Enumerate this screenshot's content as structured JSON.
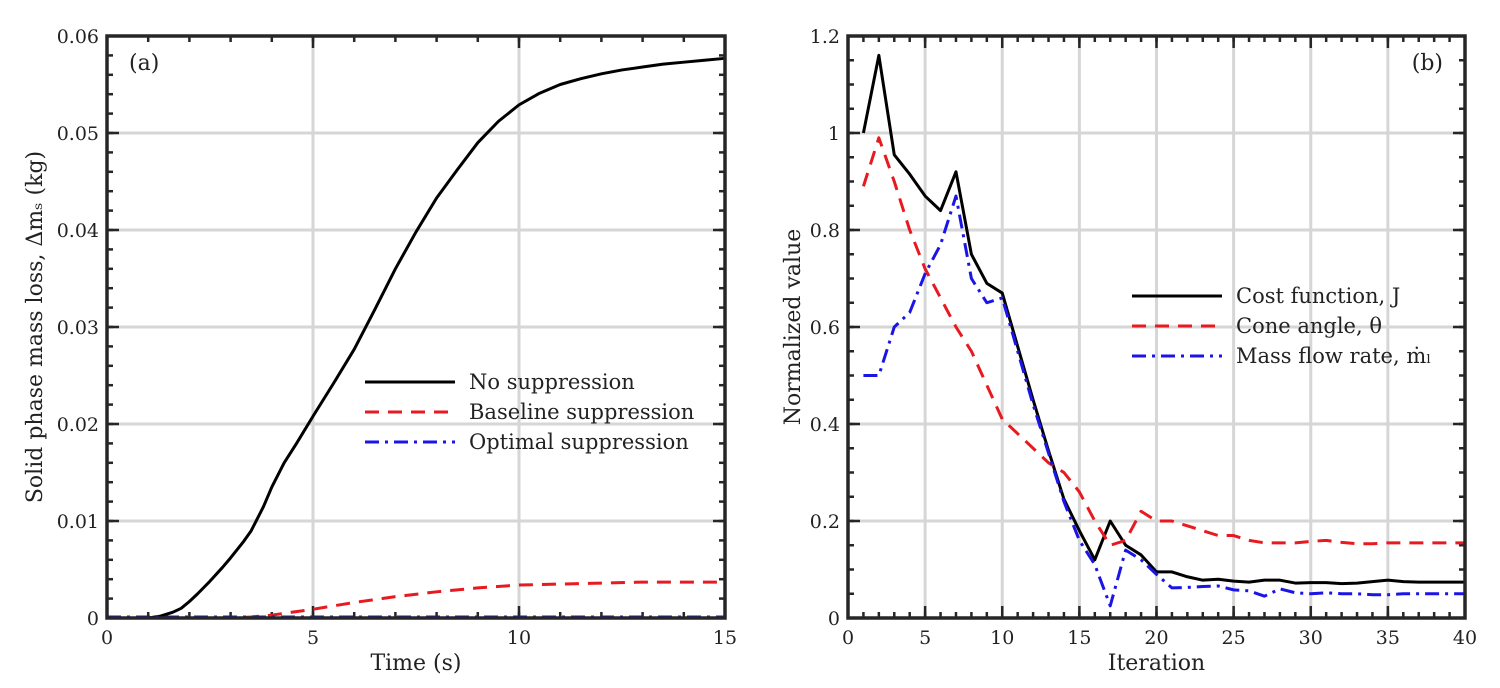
{
  "chart_data": [
    {
      "type": "line",
      "panel": "(a)",
      "title": "",
      "xlabel": "Time (s)",
      "ylabel": "Solid phase mass loss, Δmₛ (kg)",
      "xlim": [
        0,
        15
      ],
      "ylim": [
        0,
        0.06
      ],
      "xticks": [
        0,
        5,
        10,
        15
      ],
      "yticks": [
        0,
        0.01,
        0.02,
        0.03,
        0.04,
        0.05,
        0.06
      ],
      "xtick_labels": [
        "0",
        "5",
        "10",
        "15"
      ],
      "ytick_labels": [
        "0",
        "0.01",
        "0.02",
        "0.03",
        "0.04",
        "0.05",
        "0.06"
      ],
      "grid": true,
      "legend_position": "center-right",
      "series": [
        {
          "name": "No suppression",
          "color": "#000000",
          "style": "solid",
          "x": [
            0,
            1.0,
            1.3,
            1.6,
            1.8,
            2.0,
            2.2,
            2.5,
            2.8,
            3.0,
            3.3,
            3.5,
            3.8,
            4.0,
            4.3,
            4.6,
            5.0,
            5.5,
            6.0,
            6.5,
            7.0,
            7.5,
            8.0,
            8.5,
            9.0,
            9.5,
            10.0,
            10.5,
            11.0,
            11.5,
            12.0,
            12.5,
            13.0,
            13.5,
            14.0,
            14.5,
            15.0
          ],
          "y": [
            0,
            0,
            0.0002,
            0.0006,
            0.001,
            0.0017,
            0.0025,
            0.0038,
            0.0052,
            0.0062,
            0.0078,
            0.009,
            0.0115,
            0.0135,
            0.016,
            0.018,
            0.0208,
            0.0242,
            0.0277,
            0.0318,
            0.036,
            0.0398,
            0.0433,
            0.0462,
            0.049,
            0.0512,
            0.0529,
            0.0541,
            0.055,
            0.0556,
            0.0561,
            0.0565,
            0.0568,
            0.0571,
            0.0573,
            0.0575,
            0.0577
          ]
        },
        {
          "name": "Baseline suppression",
          "color": "#e8191f",
          "style": "dashed",
          "x": [
            0,
            3.0,
            3.5,
            4.0,
            5.0,
            6.0,
            7.0,
            8.0,
            9.0,
            10.0,
            11.0,
            12.0,
            13.0,
            14.0,
            15.0
          ],
          "y": [
            0,
            0,
            0.0001,
            0.0003,
            0.0009,
            0.0016,
            0.0022,
            0.0027,
            0.0031,
            0.0034,
            0.0035,
            0.0036,
            0.0037,
            0.0037,
            0.0037
          ]
        },
        {
          "name": "Optimal suppression",
          "color": "#1a14e6",
          "style": "dashdot",
          "x": [
            0,
            5,
            10,
            15
          ],
          "y": [
            0.0001,
            0.0001,
            0.0001,
            0.0001
          ]
        }
      ]
    },
    {
      "type": "line",
      "panel": "(b)",
      "title": "",
      "xlabel": "Iteration",
      "ylabel": "Normalized value",
      "xlim": [
        0,
        40
      ],
      "ylim": [
        0,
        1.2
      ],
      "xticks": [
        0,
        5,
        10,
        15,
        20,
        25,
        30,
        35,
        40
      ],
      "yticks": [
        0,
        0.2,
        0.4,
        0.6,
        0.8,
        1,
        1.2
      ],
      "xtick_labels": [
        "0",
        "5",
        "10",
        "15",
        "20",
        "25",
        "30",
        "35",
        "40"
      ],
      "ytick_labels": [
        "0",
        "0.2",
        "0.4",
        "0.6",
        "0.8",
        "1",
        "1.2"
      ],
      "grid": true,
      "legend_position": "center-right",
      "series": [
        {
          "name": "Cost function, J",
          "color": "#000000",
          "style": "solid",
          "x": [
            1,
            2,
            3,
            4,
            5,
            6,
            7,
            8,
            9,
            10,
            11,
            12,
            13,
            14,
            15,
            16,
            17,
            18,
            19,
            20,
            21,
            22,
            23,
            24,
            25,
            26,
            27,
            28,
            29,
            30,
            31,
            32,
            33,
            34,
            35,
            36,
            37,
            38,
            39,
            40
          ],
          "y": [
            1.0,
            1.16,
            0.955,
            0.915,
            0.87,
            0.84,
            0.92,
            0.75,
            0.69,
            0.67,
            0.56,
            0.45,
            0.345,
            0.245,
            0.18,
            0.12,
            0.2,
            0.15,
            0.13,
            0.095,
            0.095,
            0.085,
            0.078,
            0.08,
            0.076,
            0.074,
            0.078,
            0.078,
            0.072,
            0.073,
            0.073,
            0.071,
            0.072,
            0.075,
            0.078,
            0.075,
            0.074,
            0.074,
            0.074,
            0.074
          ]
        },
        {
          "name": "Cone angle, θ",
          "color": "#e8191f",
          "style": "dashed",
          "x": [
            1,
            2,
            3,
            4,
            5,
            6,
            7,
            8,
            9,
            10,
            11,
            12,
            13,
            14,
            15,
            16,
            17,
            18,
            19,
            20,
            21,
            22,
            23,
            24,
            25,
            26,
            27,
            28,
            29,
            30,
            31,
            32,
            33,
            34,
            35,
            36,
            37,
            38,
            39,
            40
          ],
          "y": [
            0.89,
            0.99,
            0.9,
            0.8,
            0.72,
            0.66,
            0.6,
            0.55,
            0.48,
            0.41,
            0.38,
            0.35,
            0.32,
            0.3,
            0.26,
            0.2,
            0.15,
            0.16,
            0.22,
            0.2,
            0.2,
            0.19,
            0.18,
            0.17,
            0.17,
            0.16,
            0.155,
            0.155,
            0.155,
            0.158,
            0.16,
            0.156,
            0.153,
            0.153,
            0.155,
            0.155,
            0.155,
            0.155,
            0.155,
            0.155
          ]
        },
        {
          "name": "Mass flow rate, ṁₗ",
          "color": "#1a14e6",
          "style": "dashdot",
          "x": [
            1,
            2,
            3,
            4,
            5,
            6,
            7,
            8,
            9,
            10,
            11,
            12,
            13,
            14,
            15,
            16,
            17,
            18,
            19,
            20,
            21,
            22,
            23,
            24,
            25,
            26,
            27,
            28,
            29,
            30,
            31,
            32,
            33,
            34,
            35,
            36,
            37,
            38,
            39,
            40
          ],
          "y": [
            0.5,
            0.5,
            0.6,
            0.63,
            0.71,
            0.77,
            0.87,
            0.7,
            0.65,
            0.66,
            0.55,
            0.44,
            0.34,
            0.24,
            0.16,
            0.11,
            0.025,
            0.14,
            0.12,
            0.09,
            0.062,
            0.063,
            0.065,
            0.066,
            0.058,
            0.056,
            0.045,
            0.06,
            0.052,
            0.05,
            0.052,
            0.05,
            0.05,
            0.048,
            0.048,
            0.05,
            0.05,
            0.05,
            0.05,
            0.05
          ]
        }
      ]
    }
  ]
}
